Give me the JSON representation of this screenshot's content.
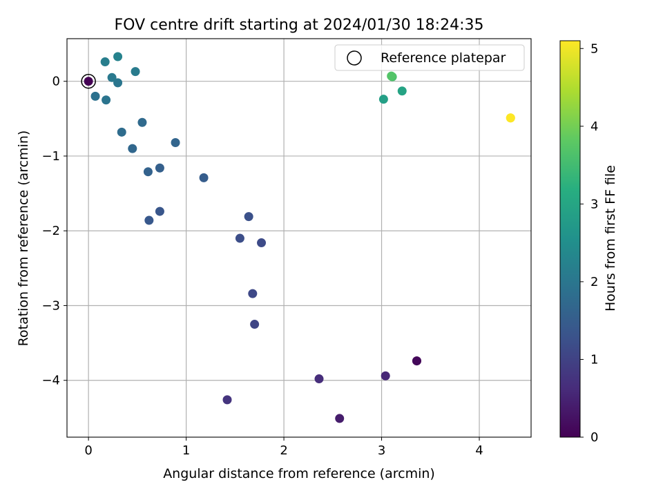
{
  "chart_data": {
    "type": "scatter",
    "title": "FOV centre drift starting at 2024/01/30 18:24:35",
    "xlabel": "Angular distance from reference (arcmin)",
    "ylabel": "Rotation from reference (arcmin)",
    "xlim": [
      -0.22,
      4.53
    ],
    "ylim": [
      -4.76,
      0.57
    ],
    "xticks": [
      0,
      1,
      2,
      3,
      4
    ],
    "yticks": [
      0,
      -1,
      -2,
      -3,
      -4
    ],
    "grid": true,
    "legend": {
      "position": "top-right",
      "entries": [
        "Reference platepar"
      ]
    },
    "colorbar": {
      "label": "Hours from first FF file",
      "min": 0,
      "max": 5.1,
      "ticks": [
        0,
        1,
        2,
        3,
        4,
        5
      ],
      "colormap": "viridis"
    },
    "reference_point": {
      "x": 0,
      "y": 0,
      "hours": 0.0
    },
    "points": [
      {
        "x": 3.36,
        "y": -3.74,
        "hours": 0.05
      },
      {
        "x": 3.36,
        "y": -3.74,
        "hours": 0.1
      },
      {
        "x": 2.57,
        "y": -4.51,
        "hours": 0.4
      },
      {
        "x": 3.04,
        "y": -3.94,
        "hours": 0.55
      },
      {
        "x": 2.36,
        "y": -3.98,
        "hours": 0.65
      },
      {
        "x": 1.42,
        "y": -4.26,
        "hours": 0.75
      },
      {
        "x": 1.7,
        "y": -3.25,
        "hours": 1.05
      },
      {
        "x": 1.68,
        "y": -2.84,
        "hours": 1.1
      },
      {
        "x": 1.77,
        "y": -2.16,
        "hours": 1.15
      },
      {
        "x": 1.55,
        "y": -2.1,
        "hours": 1.2
      },
      {
        "x": 1.64,
        "y": -1.81,
        "hours": 1.25
      },
      {
        "x": 0.73,
        "y": -1.74,
        "hours": 1.35
      },
      {
        "x": 0.62,
        "y": -1.86,
        "hours": 1.4
      },
      {
        "x": 1.18,
        "y": -1.29,
        "hours": 1.5
      },
      {
        "x": 0.73,
        "y": -1.16,
        "hours": 1.55
      },
      {
        "x": 0.61,
        "y": -1.21,
        "hours": 1.6
      },
      {
        "x": 0.89,
        "y": -0.82,
        "hours": 1.65
      },
      {
        "x": 0.45,
        "y": -0.9,
        "hours": 1.7
      },
      {
        "x": 0.55,
        "y": -0.55,
        "hours": 1.75
      },
      {
        "x": 0.34,
        "y": -0.68,
        "hours": 1.8
      },
      {
        "x": 0.07,
        "y": -0.2,
        "hours": 1.9
      },
      {
        "x": 0.18,
        "y": -0.25,
        "hours": 1.95
      },
      {
        "x": 0.3,
        "y": -0.02,
        "hours": 2.0
      },
      {
        "x": 0.24,
        "y": 0.05,
        "hours": 2.05
      },
      {
        "x": 0.48,
        "y": 0.13,
        "hours": 2.1
      },
      {
        "x": 0.17,
        "y": 0.26,
        "hours": 2.15
      },
      {
        "x": 0.3,
        "y": 0.33,
        "hours": 2.25
      },
      {
        "x": 3.02,
        "y": -0.24,
        "hours": 2.85
      },
      {
        "x": 3.21,
        "y": -0.13,
        "hours": 2.95
      },
      {
        "x": 3.11,
        "y": 0.06,
        "hours": 3.6
      },
      {
        "x": 3.1,
        "y": 0.07,
        "hours": 3.7
      },
      {
        "x": 4.32,
        "y": -0.49,
        "hours": 5.0
      },
      {
        "x": 4.32,
        "y": -0.49,
        "hours": 5.1
      }
    ]
  }
}
